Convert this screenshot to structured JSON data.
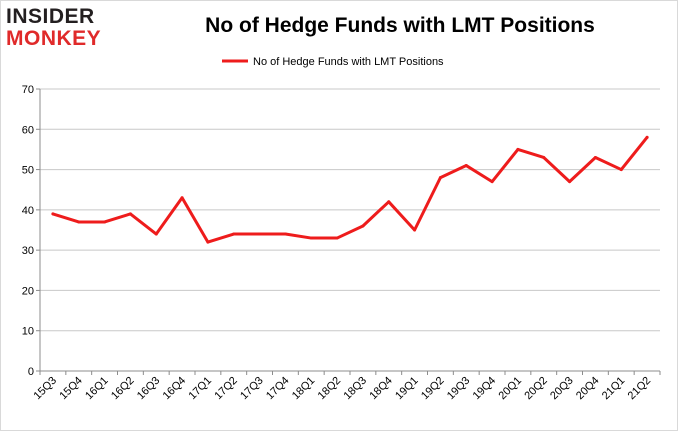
{
  "logo": {
    "line1": "INSIDER",
    "line2": "MONKEY"
  },
  "colors": {
    "series": "#ee1c1c",
    "grid": "#c8c8c8",
    "axis": "#8c8c8c"
  },
  "chart_data": {
    "type": "line",
    "title": "No of Hedge Funds with LMT Positions",
    "xlabel": "",
    "ylabel": "",
    "ylim": [
      0,
      70
    ],
    "yticks": [
      0,
      10,
      20,
      30,
      40,
      50,
      60,
      70
    ],
    "grid": true,
    "legend_position": "top",
    "categories": [
      "15Q3",
      "15Q4",
      "16Q1",
      "16Q2",
      "16Q3",
      "16Q4",
      "17Q1",
      "17Q2",
      "17Q3",
      "17Q4",
      "18Q1",
      "18Q2",
      "18Q3",
      "18Q4",
      "19Q1",
      "19Q2",
      "19Q3",
      "19Q4",
      "20Q1",
      "20Q2",
      "20Q3",
      "20Q4",
      "21Q1",
      "21Q2"
    ],
    "series": [
      {
        "name": "No of Hedge Funds with LMT Positions",
        "values": [
          39,
          37,
          37,
          39,
          34,
          43,
          32,
          34,
          34,
          34,
          33,
          33,
          36,
          42,
          35,
          48,
          51,
          47,
          55,
          53,
          47,
          53,
          50,
          58
        ]
      }
    ]
  }
}
